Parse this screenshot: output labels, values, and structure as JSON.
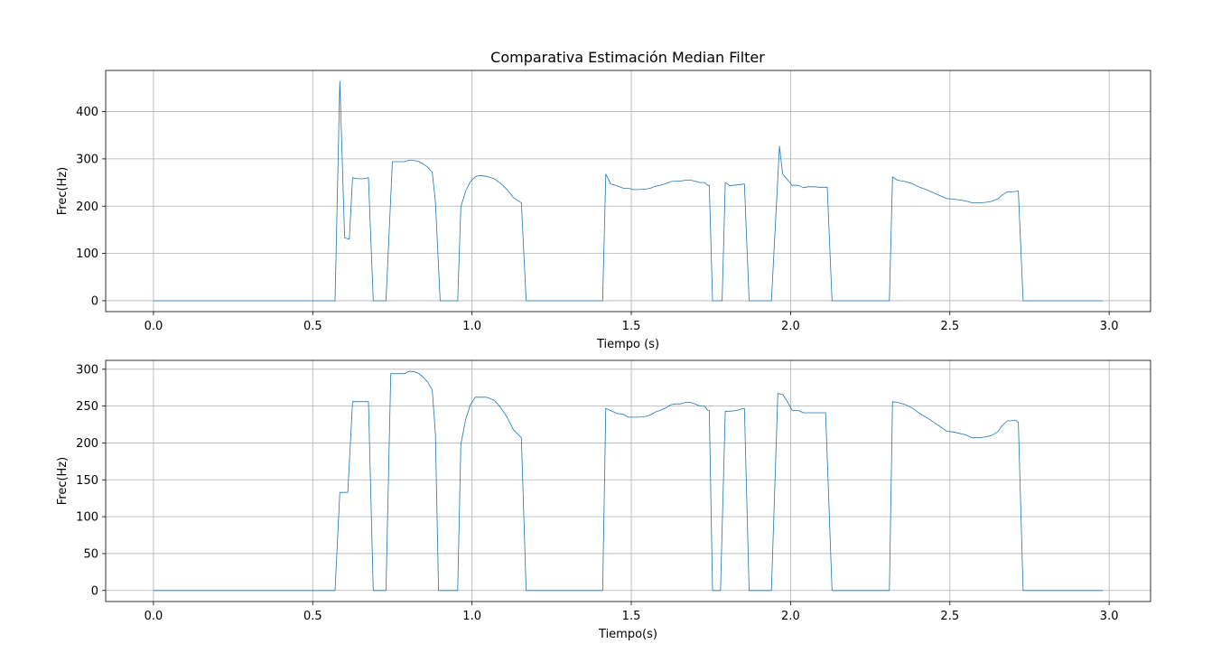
{
  "figure": {
    "title": "Comparativa Estimación Median Filter"
  },
  "chart_data": [
    {
      "type": "line",
      "title": "Comparativa Estimación Median Filter",
      "xlabel": "Tiempo (s)",
      "ylabel": "Frec(Hz)",
      "xlim": [
        -0.15,
        3.13
      ],
      "ylim": [
        -23,
        487
      ],
      "xticks": [
        0.0,
        0.5,
        1.0,
        1.5,
        2.0,
        2.5,
        3.0
      ],
      "xtick_labels": [
        "0.0",
        "0.5",
        "1.0",
        "1.5",
        "2.0",
        "2.5",
        "3.0"
      ],
      "yticks": [
        0,
        100,
        200,
        300,
        400
      ],
      "ytick_labels": [
        "0",
        "100",
        "200",
        "300",
        "400"
      ],
      "grid": true,
      "series": [
        {
          "color": "#1f77b4",
          "x": [
            0.0,
            0.57,
            0.585,
            0.6,
            0.615,
            0.625,
            0.64,
            0.66,
            0.675,
            0.69,
            0.73,
            0.75,
            0.79,
            0.8,
            0.815,
            0.83,
            0.845,
            0.86,
            0.875,
            0.885,
            0.9,
            0.955,
            0.965,
            0.98,
            0.995,
            1.01,
            1.025,
            1.045,
            1.07,
            1.09,
            1.11,
            1.13,
            1.155,
            1.17,
            1.41,
            1.42,
            1.435,
            1.455,
            1.475,
            1.49,
            1.505,
            1.525,
            1.545,
            1.56,
            1.575,
            1.59,
            1.61,
            1.625,
            1.64,
            1.655,
            1.67,
            1.685,
            1.7,
            1.715,
            1.73,
            1.74,
            1.745,
            1.755,
            1.785,
            1.795,
            1.81,
            1.83,
            1.845,
            1.855,
            1.87,
            1.94,
            1.965,
            1.975,
            1.99,
            2.005,
            2.025,
            2.04,
            2.055,
            2.075,
            2.09,
            2.115,
            2.13,
            2.31,
            2.32,
            2.335,
            2.36,
            2.38,
            2.405,
            2.425,
            2.45,
            2.47,
            2.49,
            2.51,
            2.53,
            2.55,
            2.57,
            2.59,
            2.61,
            2.63,
            2.65,
            2.665,
            2.68,
            2.69,
            2.705,
            2.715,
            2.73,
            2.98
          ],
          "y": [
            0,
            0,
            465,
            133,
            130,
            260,
            258,
            258,
            260,
            0,
            0,
            294,
            294,
            297,
            297,
            295,
            290,
            283,
            272,
            210,
            0,
            0,
            198,
            232,
            252,
            262,
            265,
            263,
            258,
            248,
            235,
            218,
            207,
            0,
            0,
            268,
            247,
            243,
            238,
            238,
            235,
            235,
            236,
            238,
            242,
            244,
            248,
            252,
            253,
            253,
            255,
            255,
            253,
            250,
            250,
            244,
            244,
            0,
            0,
            250,
            243,
            245,
            246,
            247,
            0,
            0,
            327,
            268,
            256,
            244,
            244,
            239,
            241,
            241,
            240,
            240,
            0,
            0,
            262,
            255,
            252,
            248,
            240,
            235,
            228,
            222,
            216,
            215,
            213,
            211,
            207,
            207,
            208,
            210,
            215,
            224,
            230,
            230,
            231,
            232,
            0,
            0
          ]
        }
      ]
    },
    {
      "type": "line",
      "title": "",
      "xlabel": "Tiempo(s)",
      "ylabel": "Frec(Hz)",
      "xlim": [
        -0.15,
        3.13
      ],
      "ylim": [
        -15,
        312
      ],
      "xticks": [
        0.0,
        0.5,
        1.0,
        1.5,
        2.0,
        2.5,
        3.0
      ],
      "xtick_labels": [
        "0.0",
        "0.5",
        "1.0",
        "1.5",
        "2.0",
        "2.5",
        "3.0"
      ],
      "yticks": [
        0,
        50,
        100,
        150,
        200,
        250,
        300
      ],
      "ytick_labels": [
        "0",
        "50",
        "100",
        "150",
        "200",
        "250",
        "300"
      ],
      "grid": true,
      "series": [
        {
          "color": "#1f77b4",
          "x": [
            0.0,
            0.57,
            0.585,
            0.61,
            0.625,
            0.635,
            0.67,
            0.675,
            0.69,
            0.73,
            0.745,
            0.79,
            0.8,
            0.815,
            0.83,
            0.845,
            0.86,
            0.875,
            0.885,
            0.895,
            0.955,
            0.965,
            0.98,
            0.995,
            1.01,
            1.03,
            1.045,
            1.07,
            1.09,
            1.11,
            1.13,
            1.155,
            1.17,
            1.41,
            1.42,
            1.435,
            1.455,
            1.475,
            1.49,
            1.505,
            1.525,
            1.545,
            1.56,
            1.575,
            1.59,
            1.61,
            1.625,
            1.64,
            1.655,
            1.67,
            1.685,
            1.7,
            1.715,
            1.73,
            1.74,
            1.745,
            1.755,
            1.78,
            1.795,
            1.81,
            1.83,
            1.845,
            1.855,
            1.87,
            1.94,
            1.96,
            1.975,
            1.99,
            2.005,
            2.025,
            2.04,
            2.055,
            2.075,
            2.09,
            2.11,
            2.13,
            2.31,
            2.32,
            2.335,
            2.36,
            2.38,
            2.405,
            2.425,
            2.45,
            2.47,
            2.49,
            2.51,
            2.53,
            2.55,
            2.57,
            2.59,
            2.61,
            2.63,
            2.65,
            2.665,
            2.68,
            2.69,
            2.705,
            2.715,
            2.73,
            2.98
          ],
          "y": [
            0,
            0,
            133,
            133,
            256,
            256,
            256,
            256,
            0,
            0,
            294,
            294,
            297,
            297,
            295,
            290,
            283,
            272,
            213,
            0,
            0,
            198,
            232,
            252,
            262,
            262,
            262,
            258,
            248,
            235,
            218,
            207,
            0,
            0,
            247,
            244,
            240,
            239,
            235,
            235,
            235,
            236,
            238,
            242,
            244,
            248,
            252,
            253,
            253,
            255,
            255,
            253,
            250,
            250,
            244,
            244,
            0,
            0,
            243,
            243,
            244,
            246,
            247,
            0,
            0,
            267,
            266,
            256,
            244,
            244,
            241,
            241,
            241,
            241,
            241,
            0,
            0,
            256,
            255,
            252,
            248,
            240,
            235,
            228,
            222,
            216,
            215,
            213,
            211,
            207,
            207,
            208,
            210,
            215,
            224,
            230,
            230,
            231,
            228,
            0,
            0
          ]
        }
      ]
    }
  ]
}
